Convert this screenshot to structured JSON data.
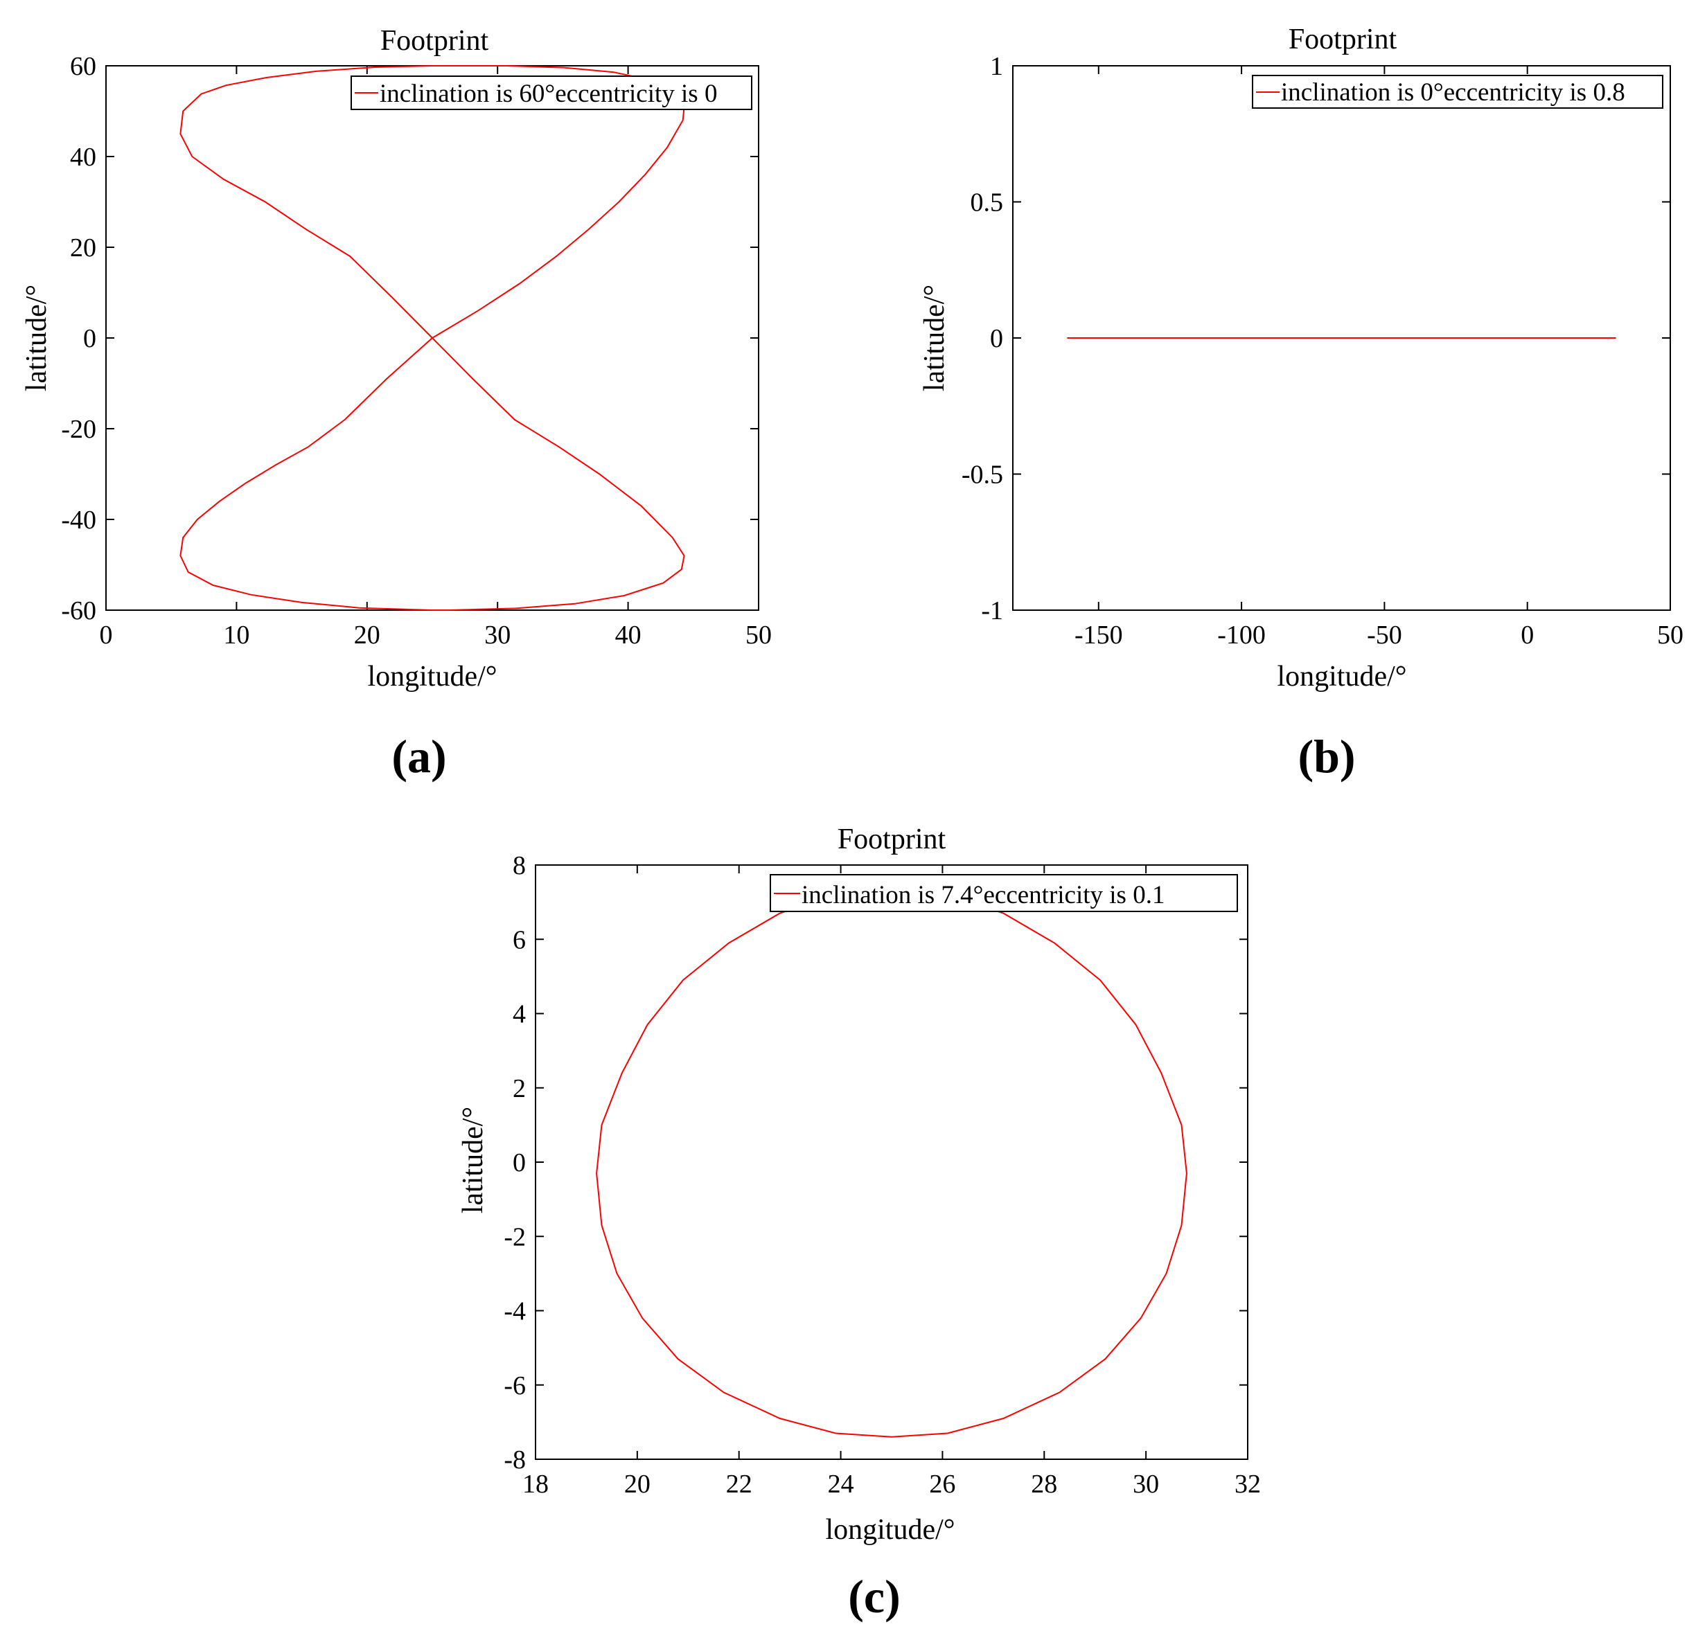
{
  "panels": [
    {
      "label": "(a)",
      "chart_data": {
        "type": "line",
        "title": "Footprint",
        "xlabel": "longitude/°",
        "ylabel": "latitude/°",
        "xlim": [
          0,
          50
        ],
        "ylim": [
          -60,
          60
        ],
        "xticks": [
          "0",
          "10",
          "20",
          "30",
          "40",
          "50"
        ],
        "yticks": [
          "-60",
          "-40",
          "-20",
          "0",
          "20",
          "40",
          "60"
        ],
        "grid": false,
        "legend_position": "top-right",
        "line_color": "#ff0000",
        "series": [
          {
            "name": "inclination is 60°eccentricity is 0",
            "x": [
              25,
              28.5,
              31.7,
              34.5,
              37,
              39.3,
              41.3,
              43,
              44.2,
              44.3,
              43.8,
              41.9,
              38.9,
              35.1,
              30.7,
              25.9,
              25,
              20.6,
              16.1,
              12.3,
              9.2,
              7.3,
              5.9,
              5.7,
              6.6,
              9,
              12.2,
              15.3,
              18.7,
              21.9,
              25,
              28.1,
              31.3,
              34.7,
              37.8,
              41,
              43.4,
              44.3,
              44.1,
              42.7,
              39.7,
              35.9,
              31.4,
              26.3,
              25,
              19.4,
              15,
              11.1,
              8.2,
              6.3,
              5.7,
              5.9,
              7,
              8.7,
              10.7,
              13,
              15.5,
              18.3,
              21.5,
              25
            ],
            "y": [
              0,
              6,
              12,
              18,
              24,
              30,
              36,
              42,
              48,
              51,
              54,
              56.7,
              58.6,
              59.6,
              60,
              60,
              60,
              59.7,
              58.8,
              57.4,
              55.7,
              53.8,
              50,
              45,
              40,
              35,
              30,
              24,
              18,
              9,
              0,
              -9,
              -18,
              -24,
              -30,
              -37,
              -44,
              -48,
              -51,
              -54,
              -56.8,
              -58.6,
              -59.6,
              -60,
              -60,
              -59.5,
              -58.3,
              -56.6,
              -54.5,
              -51.6,
              -48,
              -44,
              -40,
              -36,
              -32,
              -28,
              -24,
              -18,
              -9,
              0
            ]
          }
        ]
      }
    },
    {
      "label": "(b)",
      "chart_data": {
        "type": "line",
        "title": "Footprint",
        "xlabel": "longitude/°",
        "ylabel": "latitude/°",
        "xlim": [
          -180,
          50
        ],
        "ylim": [
          -1,
          1
        ],
        "xticks": [
          "-150",
          "-100",
          "-50",
          "0",
          "50"
        ],
        "yticks": [
          "-1",
          "-0.5",
          "0",
          "0.5",
          "1"
        ],
        "grid": false,
        "legend_position": "top-right",
        "line_color": "#ff0000",
        "series": [
          {
            "name": "inclination is 0°eccentricity is 0.8",
            "x": [
              -161,
              31
            ],
            "y": [
              0,
              0
            ]
          }
        ]
      }
    },
    {
      "label": "(c)",
      "chart_data": {
        "type": "line",
        "title": "Footprint",
        "xlabel": "longitude/°",
        "ylabel": "latitude/°",
        "xlim": [
          18,
          32
        ],
        "ylim": [
          -8,
          8
        ],
        "xticks": [
          "18",
          "20",
          "22",
          "24",
          "26",
          "28",
          "30",
          "32"
        ],
        "yticks": [
          "-8",
          "-6",
          "-4",
          "-2",
          "0",
          "2",
          "4",
          "6",
          "8"
        ],
        "grid": false,
        "legend_position": "top-right",
        "line_color": "#ff0000",
        "series": [
          {
            "name": "inclination is 7.4°eccentricity is 0.1",
            "x": [
              25,
              26.1,
              27.2,
              28.2,
              29.1,
              29.8,
              30.3,
              30.7,
              30.8,
              30.7,
              30.4,
              29.9,
              29.2,
              28.3,
              27.2,
              26.1,
              25,
              23.9,
              22.8,
              21.7,
              20.8,
              20.1,
              19.6,
              19.3,
              19.2,
              19.3,
              19.7,
              20.2,
              20.9,
              21.8,
              22.8,
              23.9,
              25
            ],
            "y": [
              7.4,
              7.2,
              6.7,
              5.9,
              4.9,
              3.7,
              2.4,
              1,
              -0.3,
              -1.7,
              -3,
              -4.2,
              -5.3,
              -6.2,
              -6.9,
              -7.3,
              -7.4,
              -7.3,
              -6.9,
              -6.2,
              -5.3,
              -4.2,
              -3,
              -1.7,
              -0.3,
              1,
              2.4,
              3.7,
              4.9,
              5.9,
              6.7,
              7.2,
              7.4
            ]
          }
        ]
      }
    }
  ]
}
